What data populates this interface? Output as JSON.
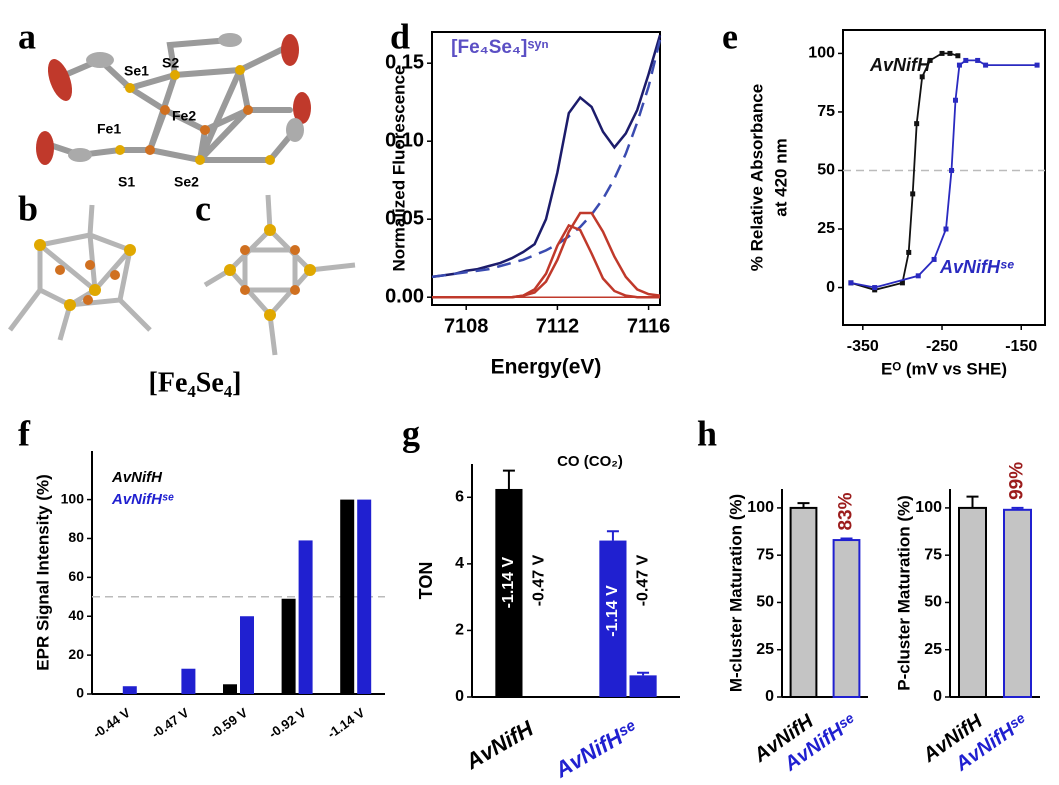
{
  "panel_labels": [
    "a",
    "b",
    "c",
    "d",
    "e",
    "f",
    "g",
    "h"
  ],
  "structure": {
    "atom_labels": [
      "Se1",
      "S2",
      "Fe2",
      "Fe1",
      "S1",
      "Se2"
    ],
    "caption": "[Fe₄Se₄]"
  },
  "chart_data": [
    {
      "type": "line",
      "title": "[Fe₄Se₄]ˢʸⁿ",
      "xlabel": "Energy(eV)",
      "ylabel": "Normalized Fluorescence",
      "x": [
        7106.5,
        7107,
        7107.5,
        7108,
        7108.5,
        7109,
        7109.5,
        7110,
        7110.5,
        7111,
        7111.5,
        7112,
        7112.5,
        7113,
        7113.5,
        7114,
        7114.5,
        7115,
        7115.5,
        7116,
        7116.5
      ],
      "series": [
        {
          "color": "#1c1c6b",
          "style": "solid",
          "values": [
            0.013,
            0.014,
            0.015,
            0.017,
            0.018,
            0.02,
            0.022,
            0.025,
            0.029,
            0.034,
            0.05,
            0.08,
            0.118,
            0.128,
            0.122,
            0.106,
            0.096,
            0.105,
            0.12,
            0.143,
            0.168
          ]
        },
        {
          "color": "#3a4bb0",
          "style": "dashed",
          "values": [
            0.013,
            0.014,
            0.015,
            0.016,
            0.017,
            0.018,
            0.02,
            0.022,
            0.024,
            0.027,
            0.03,
            0.034,
            0.039,
            0.045,
            0.053,
            0.063,
            0.076,
            0.092,
            0.112,
            0.135,
            0.165
          ]
        },
        {
          "color": "#c0392b",
          "style": "solid",
          "values": [
            0,
            0,
            0,
            0,
            0,
            0,
            0,
            0,
            0.001,
            0.005,
            0.015,
            0.033,
            0.046,
            0.043,
            0.028,
            0.012,
            0.004,
            0.001,
            0,
            0,
            0
          ]
        },
        {
          "color": "#c0392b",
          "style": "solid",
          "values": [
            0,
            0,
            0,
            0,
            0,
            0,
            0,
            0,
            0.001,
            0.003,
            0.01,
            0.024,
            0.042,
            0.054,
            0.054,
            0.042,
            0.026,
            0.013,
            0.005,
            0.002,
            0.001
          ]
        }
      ],
      "xlim": [
        7106.5,
        7116.5
      ],
      "xticks": [
        7108,
        7112,
        7116
      ],
      "ylim": [
        -0.005,
        0.17
      ],
      "yticks": [
        {
          "value": 0,
          "label": "0.00"
        },
        {
          "value": 0.05,
          "label": "0.05"
        },
        {
          "value": 0.1,
          "label": "0.10"
        },
        {
          "value": 0.15,
          "label": "0.15"
        }
      ]
    },
    {
      "type": "scatter",
      "xlabel": "Eᴼ (mV vs SHE)",
      "ylabel": [
        "% Relative Absorbance",
        "at 420 nm"
      ],
      "series": [
        {
          "name": "AvNifH",
          "color": "#111111",
          "x": [
            -365,
            -335,
            -300,
            -292,
            -287,
            -282,
            -275,
            -265,
            -250,
            -240,
            -230
          ],
          "values": [
            2,
            -1,
            2,
            15,
            40,
            70,
            90,
            97,
            100,
            100,
            99
          ]
        },
        {
          "name": "AvNifHˢᵉ",
          "color": "#2a2ac0",
          "x": [
            -365,
            -335,
            -280,
            -260,
            -245,
            -238,
            -233,
            -228,
            -220,
            -205,
            -195,
            -130
          ],
          "values": [
            2,
            0,
            5,
            12,
            25,
            50,
            80,
            95,
            97,
            97,
            95,
            95
          ]
        }
      ],
      "xlim": [
        -375,
        -120
      ],
      "xticks": [
        -350,
        -250,
        -150
      ],
      "ylim": [
        -16,
        110
      ],
      "yticks": [
        0,
        25,
        50,
        75,
        100
      ],
      "reference_line": 50
    },
    {
      "type": "bar",
      "ylabel": "EPR Signal Intensity (%)",
      "categories": [
        "-0.44 V",
        "-0.47 V",
        "-0.59 V",
        "-0.92 V",
        "-1.14 V"
      ],
      "series": [
        {
          "name": "AvNifH",
          "color": "#000000",
          "values": [
            0.5,
            0.5,
            5,
            49,
            100
          ]
        },
        {
          "name": "AvNifHˢᵉ",
          "color": "#2020d0",
          "values": [
            4,
            13,
            40,
            79,
            100
          ]
        }
      ],
      "ylim": [
        0,
        125
      ],
      "yticks": [
        0,
        20,
        40,
        60,
        80,
        100
      ],
      "reference_line": 50
    },
    {
      "type": "bar",
      "ylabel": "TON",
      "annotation": "CO (CO₂)",
      "categories": [
        "AvNifH",
        "AvNifHˢᵉ"
      ],
      "category_colors": [
        "#000000",
        "#2020d0"
      ],
      "series": [
        {
          "name": "-1.14 V",
          "values": [
            6.25,
            4.7
          ],
          "errors": [
            0.55,
            0.28
          ]
        },
        {
          "name": "-0.47 V",
          "values": [
            0.02,
            0.65
          ],
          "errors": [
            null,
            0.08
          ]
        }
      ],
      "ylim": [
        0,
        7
      ],
      "yticks": [
        0,
        2,
        4,
        6
      ]
    },
    {
      "type": "bar",
      "ylabel": "M-cluster Maturation (%)",
      "categories": [
        "AvNifH",
        "AvNifHˢᵉ"
      ],
      "category_colors": [
        "#000000",
        "#2020d0"
      ],
      "fill": "#c4c4c4",
      "series": [
        {
          "values": [
            100,
            83
          ],
          "errors": [
            2.5,
            0.8
          ],
          "value_labels": [
            null,
            "83%"
          ]
        }
      ],
      "ylim": [
        0,
        110
      ],
      "yticks": [
        0,
        25,
        50,
        75,
        100
      ]
    },
    {
      "type": "bar",
      "ylabel": "P-cluster Maturation (%)",
      "categories": [
        "AvNifH",
        "AvNifHˢᵉ"
      ],
      "category_colors": [
        "#000000",
        "#2020d0"
      ],
      "fill": "#c4c4c4",
      "series": [
        {
          "values": [
            100,
            99
          ],
          "errors": [
            6,
            1
          ],
          "value_labels": [
            null,
            "99%"
          ]
        }
      ],
      "ylim": [
        0,
        110
      ],
      "yticks": [
        0,
        25,
        50,
        75,
        100
      ]
    }
  ]
}
